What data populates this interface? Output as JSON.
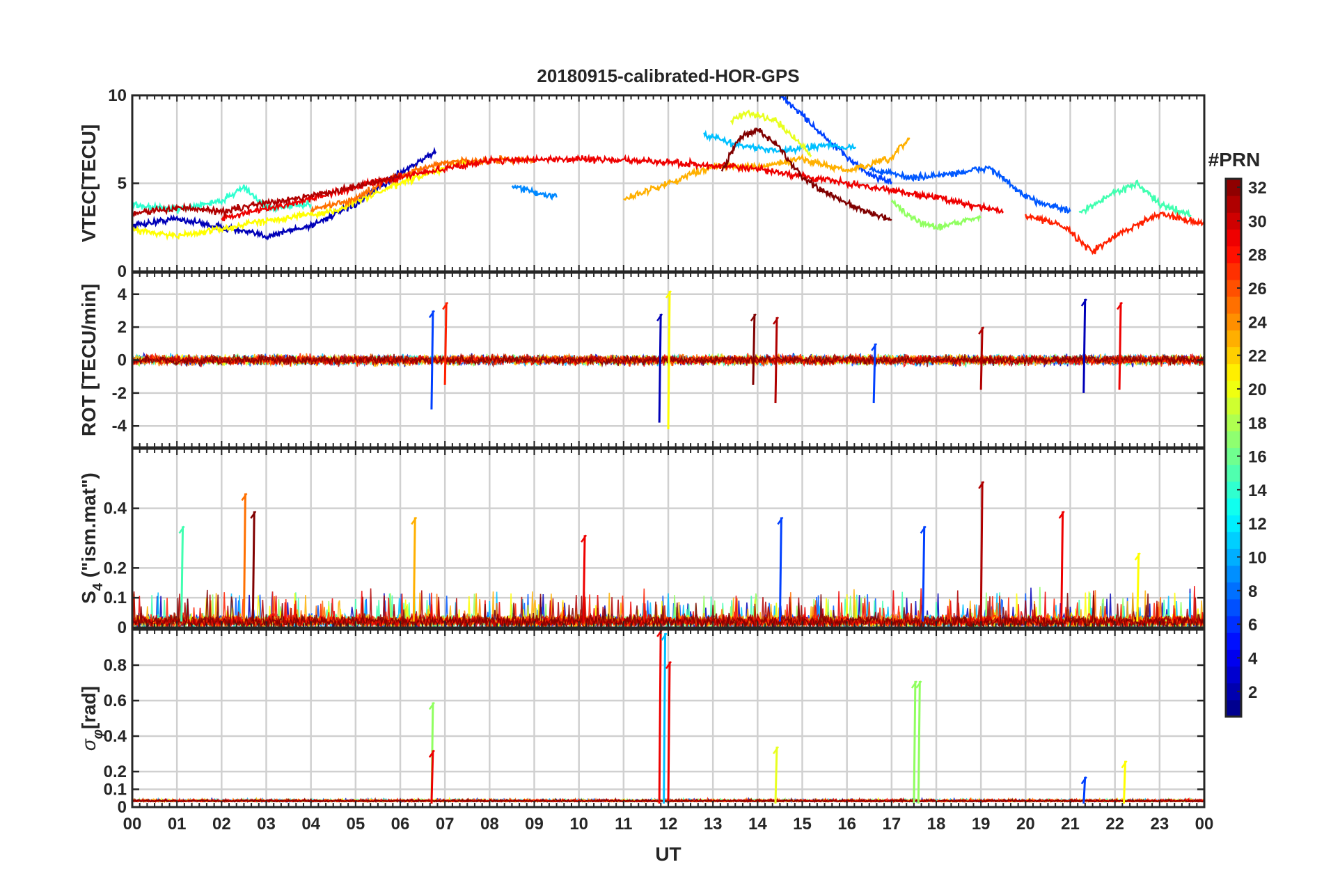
{
  "chart_data": [
    {
      "type": "line",
      "panel": "vtec",
      "title": "20180915-calibrated-HOR-GPS",
      "ylabel": "VTEC[TECU]",
      "xlabel": "",
      "xlim": [
        0,
        24
      ],
      "ylim": [
        0,
        10
      ],
      "yticks": [
        "0",
        "5",
        "10"
      ],
      "yticks_values": [
        0,
        5,
        10
      ],
      "grid": true,
      "series": [
        {
          "prn": 2,
          "color": "#0000b8",
          "x": [
            0,
            1,
            2,
            3,
            4,
            5,
            6,
            6.8
          ],
          "y": [
            2.6,
            3.0,
            2.5,
            2.0,
            2.6,
            3.8,
            5.6,
            6.8
          ]
        },
        {
          "prn": 5,
          "color": "#0040ff",
          "x": [
            14.5,
            15,
            15.5,
            16,
            16.5,
            17
          ],
          "y": [
            10.0,
            8.9,
            7.6,
            6.5,
            5.5,
            5.1
          ]
        },
        {
          "prn": 6,
          "color": "#0058ff",
          "x": [
            16.5,
            17.5,
            18.5,
            19.2,
            20,
            21
          ],
          "y": [
            5.8,
            5.3,
            5.6,
            5.9,
            4.2,
            3.4
          ]
        },
        {
          "prn": 9,
          "color": "#0088ff",
          "x": [
            8.5,
            9,
            9.5
          ],
          "y": [
            4.8,
            4.5,
            4.2
          ]
        },
        {
          "prn": 11,
          "color": "#00c0ff",
          "x": [
            12.8,
            13.5,
            14.5,
            15.5,
            16.2
          ],
          "y": [
            7.8,
            7.2,
            6.8,
            7.2,
            7.0
          ]
        },
        {
          "prn": 13,
          "color": "#30ffd0",
          "x": [
            0,
            1,
            2,
            2.5,
            3,
            4
          ],
          "y": [
            3.8,
            3.5,
            4.0,
            4.8,
            3.6,
            3.8
          ]
        },
        {
          "prn": 14,
          "color": "#40ffb0",
          "x": [
            21.2,
            22,
            22.5,
            23,
            23.7
          ],
          "y": [
            3.3,
            4.5,
            5.0,
            3.8,
            3.2
          ]
        },
        {
          "prn": 17,
          "color": "#90ff60",
          "x": [
            17,
            17.5,
            18,
            18.5,
            19
          ],
          "y": [
            4.0,
            2.9,
            2.5,
            2.8,
            3.1
          ]
        },
        {
          "prn": 19,
          "color": "#e8ff20",
          "x": [
            13.4,
            13.8,
            14.4,
            14.8,
            15.2
          ],
          "y": [
            8.6,
            9.0,
            8.6,
            7.6,
            6.6
          ]
        },
        {
          "prn": 20,
          "color": "#ffff00",
          "x": [
            0,
            1,
            2,
            3,
            4.5,
            6,
            7.5
          ],
          "y": [
            2.4,
            2.0,
            2.4,
            2.9,
            3.4,
            5.0,
            6.3
          ]
        },
        {
          "prn": 22,
          "color": "#ffb000",
          "x": [
            11,
            12,
            13,
            14,
            15,
            16,
            17,
            17.4
          ],
          "y": [
            4.1,
            5.0,
            6.0,
            5.9,
            6.4,
            5.7,
            6.4,
            7.6
          ]
        },
        {
          "prn": 24,
          "color": "#ff7000",
          "x": [
            4,
            5,
            5.8,
            7,
            8,
            9
          ],
          "y": [
            3.5,
            4.1,
            5.3,
            6.2,
            6.3,
            6.4
          ]
        },
        {
          "prn": 27,
          "color": "#ff2000",
          "x": [
            20,
            20.8,
            21.5,
            22,
            23,
            24
          ],
          "y": [
            3.1,
            2.7,
            1.1,
            2.0,
            3.3,
            2.7
          ]
        },
        {
          "prn": 28,
          "color": "#ee0000",
          "x": [
            2,
            3.5,
            5,
            6.5,
            8,
            10,
            12,
            14,
            16,
            18,
            19.5
          ],
          "y": [
            3.0,
            3.8,
            4.8,
            5.6,
            6.3,
            6.4,
            6.2,
            5.8,
            5.0,
            4.2,
            3.4
          ]
        },
        {
          "prn": 30,
          "color": "#b00000",
          "x": [
            0,
            1,
            2,
            3,
            4,
            5,
            6
          ],
          "y": [
            3.3,
            3.6,
            3.4,
            3.9,
            4.3,
            4.8,
            5.4
          ]
        },
        {
          "prn": 32,
          "color": "#800000",
          "x": [
            13.2,
            13.6,
            14,
            14.5,
            15,
            15.6,
            16.2,
            17
          ],
          "y": [
            5.7,
            7.6,
            8.1,
            7.0,
            5.3,
            4.4,
            3.6,
            2.9
          ]
        }
      ]
    },
    {
      "type": "line",
      "panel": "rot",
      "ylabel": "ROT [TECU/min]",
      "xlim": [
        0,
        24
      ],
      "ylim": [
        -5.3,
        5.3
      ],
      "yticks": [
        "-4",
        "-2",
        "0",
        "2",
        "4"
      ],
      "yticks_values": [
        -4,
        -2,
        0,
        2,
        4
      ],
      "grid": true,
      "spikes": [
        {
          "x": 6.7,
          "y": [
            -3.0,
            3.0
          ],
          "color": "#0040ff"
        },
        {
          "x": 7.0,
          "y": [
            -1.5,
            3.5
          ],
          "color": "#ff2000"
        },
        {
          "x": 11.8,
          "y": [
            -3.8,
            2.8
          ],
          "color": "#0000b8"
        },
        {
          "x": 12.0,
          "y": [
            -4.2,
            4.2
          ],
          "color": "#ffff00"
        },
        {
          "x": 13.9,
          "y": [
            -1.5,
            2.8
          ],
          "color": "#800000"
        },
        {
          "x": 14.4,
          "y": [
            -2.6,
            2.6
          ],
          "color": "#b00000"
        },
        {
          "x": 16.6,
          "y": [
            -2.6,
            1.0
          ],
          "color": "#0040ff"
        },
        {
          "x": 19.0,
          "y": [
            -1.8,
            2.0
          ],
          "color": "#b00000"
        },
        {
          "x": 21.3,
          "y": [
            -2.0,
            3.7
          ],
          "color": "#0000b8"
        },
        {
          "x": 22.1,
          "y": [
            -1.8,
            3.5
          ],
          "color": "#ee0000"
        }
      ]
    },
    {
      "type": "line",
      "panel": "s4",
      "ylabel": "S4 (\"ism.mat\")",
      "xlim": [
        0,
        24
      ],
      "ylim": [
        0,
        0.6
      ],
      "yticks": [
        "0",
        "0.1",
        "0.2",
        "0.4"
      ],
      "yticks_values": [
        0,
        0.1,
        0.2,
        0.4
      ],
      "grid": true,
      "spikes": [
        {
          "x": 1.1,
          "y": 0.34,
          "color": "#40ffb0"
        },
        {
          "x": 2.5,
          "y": 0.45,
          "color": "#ff7000"
        },
        {
          "x": 2.7,
          "y": 0.39,
          "color": "#800000"
        },
        {
          "x": 6.3,
          "y": 0.37,
          "color": "#ffb000"
        },
        {
          "x": 10.1,
          "y": 0.31,
          "color": "#ee0000"
        },
        {
          "x": 14.5,
          "y": 0.37,
          "color": "#0040ff"
        },
        {
          "x": 17.7,
          "y": 0.34,
          "color": "#0040ff"
        },
        {
          "x": 19.0,
          "y": 0.49,
          "color": "#b00000"
        },
        {
          "x": 20.8,
          "y": 0.39,
          "color": "#ee0000"
        },
        {
          "x": 22.5,
          "y": 0.25,
          "color": "#ffff00"
        }
      ]
    },
    {
      "type": "line",
      "panel": "sigma_phi",
      "ylabel": "σφ[rad]",
      "xlim": [
        0,
        24
      ],
      "ylim": [
        0,
        1.0
      ],
      "yticks": [
        "0",
        "0.1",
        "0.2",
        "0.4",
        "0.6",
        "0.8"
      ],
      "yticks_values": [
        0,
        0.1,
        0.2,
        0.4,
        0.6,
        0.8
      ],
      "xlabel": "UT",
      "xticks": [
        "00",
        "01",
        "02",
        "03",
        "04",
        "05",
        "06",
        "07",
        "08",
        "09",
        "10",
        "11",
        "12",
        "13",
        "14",
        "15",
        "16",
        "17",
        "18",
        "19",
        "20",
        "21",
        "22",
        "23",
        "00"
      ],
      "grid": true,
      "spikes": [
        {
          "x": 6.7,
          "y": 0.59,
          "color": "#90ff60"
        },
        {
          "x": 6.7,
          "y": 0.32,
          "color": "#ee0000"
        },
        {
          "x": 11.8,
          "y": 1.0,
          "color": "#ee0000"
        },
        {
          "x": 11.9,
          "y": 0.98,
          "color": "#00c0ff"
        },
        {
          "x": 12.0,
          "y": 0.82,
          "color": "#ee0000"
        },
        {
          "x": 14.4,
          "y": 0.34,
          "color": "#e8ff20"
        },
        {
          "x": 17.5,
          "y": 0.71,
          "color": "#90ff60"
        },
        {
          "x": 17.6,
          "y": 0.71,
          "color": "#90ff60"
        },
        {
          "x": 21.3,
          "y": 0.17,
          "color": "#0040ff"
        },
        {
          "x": 22.2,
          "y": 0.26,
          "color": "#ffff00"
        }
      ]
    }
  ],
  "colorbar": {
    "title": "#PRN",
    "min": 1,
    "max": 32,
    "tick_labels": [
      "2",
      "4",
      "6",
      "8",
      "10",
      "12",
      "14",
      "16",
      "18",
      "20",
      "22",
      "24",
      "26",
      "28",
      "30",
      "32"
    ],
    "tick_values": [
      2,
      4,
      6,
      8,
      10,
      12,
      14,
      16,
      18,
      20,
      22,
      24,
      26,
      28,
      30,
      32
    ],
    "colormap": "jet"
  }
}
